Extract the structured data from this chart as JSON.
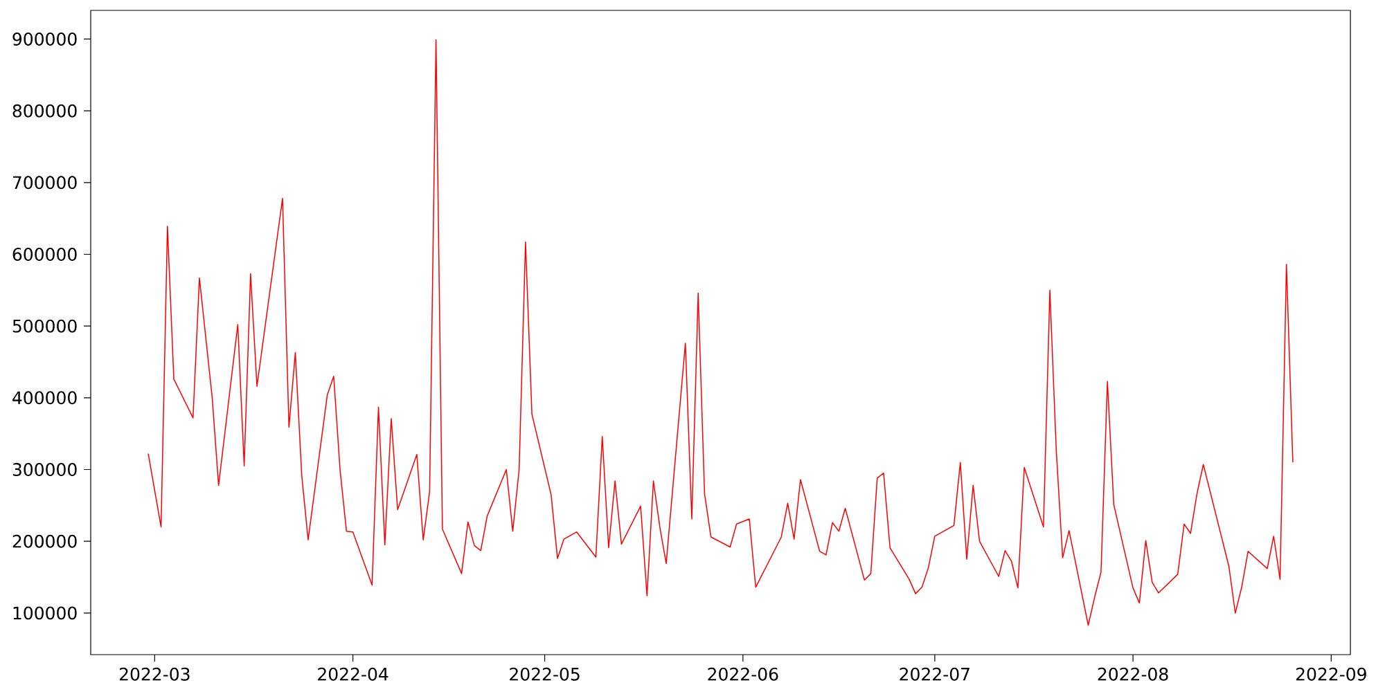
{
  "chart_data": {
    "type": "line",
    "color": "#ff0000",
    "x": [
      "2022-02-28",
      "2022-03-02",
      "2022-03-03",
      "2022-03-04",
      "2022-03-07",
      "2022-03-08",
      "2022-03-10",
      "2022-03-11",
      "2022-03-14",
      "2022-03-15",
      "2022-03-16",
      "2022-03-17",
      "2022-03-21",
      "2022-03-22",
      "2022-03-23",
      "2022-03-24",
      "2022-03-25",
      "2022-03-28",
      "2022-03-29",
      "2022-03-30",
      "2022-03-31",
      "2022-04-01",
      "2022-04-04",
      "2022-04-05",
      "2022-04-06",
      "2022-04-07",
      "2022-04-08",
      "2022-04-11",
      "2022-04-12",
      "2022-04-13",
      "2022-04-14",
      "2022-04-15",
      "2022-04-18",
      "2022-04-19",
      "2022-04-20",
      "2022-04-21",
      "2022-04-22",
      "2022-04-25",
      "2022-04-26",
      "2022-04-27",
      "2022-04-28",
      "2022-04-29",
      "2022-05-02",
      "2022-05-03",
      "2022-05-04",
      "2022-05-06",
      "2022-05-09",
      "2022-05-10",
      "2022-05-11",
      "2022-05-12",
      "2022-05-13",
      "2022-05-16",
      "2022-05-17",
      "2022-05-18",
      "2022-05-19",
      "2022-05-20",
      "2022-05-23",
      "2022-05-24",
      "2022-05-25",
      "2022-05-26",
      "2022-05-27",
      "2022-05-30",
      "2022-05-31",
      "2022-06-02",
      "2022-06-03",
      "2022-06-07",
      "2022-06-08",
      "2022-06-09",
      "2022-06-10",
      "2022-06-13",
      "2022-06-14",
      "2022-06-15",
      "2022-06-16",
      "2022-06-17",
      "2022-06-20",
      "2022-06-21",
      "2022-06-22",
      "2022-06-23",
      "2022-06-24",
      "2022-06-27",
      "2022-06-28",
      "2022-06-29",
      "2022-06-30",
      "2022-07-01",
      "2022-07-04",
      "2022-07-05",
      "2022-07-06",
      "2022-07-07",
      "2022-07-08",
      "2022-07-11",
      "2022-07-12",
      "2022-07-13",
      "2022-07-14",
      "2022-07-15",
      "2022-07-18",
      "2022-07-19",
      "2022-07-20",
      "2022-07-21",
      "2022-07-22",
      "2022-07-25",
      "2022-07-26",
      "2022-07-27",
      "2022-07-28",
      "2022-07-29",
      "2022-08-01",
      "2022-08-02",
      "2022-08-03",
      "2022-08-04",
      "2022-08-05",
      "2022-08-08",
      "2022-08-09",
      "2022-08-10",
      "2022-08-11",
      "2022-08-12",
      "2022-08-16",
      "2022-08-17",
      "2022-08-18",
      "2022-08-19",
      "2022-08-22",
      "2022-08-23",
      "2022-08-24",
      "2022-08-25",
      "2022-08-26"
    ],
    "values": [
      322000,
      220000,
      639000,
      426000,
      372000,
      567000,
      400000,
      278000,
      502000,
      305000,
      573000,
      416000,
      678000,
      359000,
      463000,
      292000,
      202000,
      404000,
      430000,
      299000,
      214000,
      213000,
      139000,
      387000,
      195000,
      371000,
      244000,
      321000,
      202000,
      269000,
      899000,
      217000,
      155000,
      227000,
      194000,
      187000,
      235000,
      300000,
      214000,
      300000,
      617000,
      377000,
      265000,
      176000,
      203000,
      213000,
      178000,
      346000,
      191000,
      284000,
      196000,
      249000,
      124000,
      284000,
      220000,
      169000,
      476000,
      231000,
      546000,
      266000,
      206000,
      192000,
      224000,
      231000,
      136000,
      206000,
      253000,
      203000,
      286000,
      186000,
      181000,
      226000,
      214000,
      246000,
      146000,
      155000,
      288000,
      295000,
      191000,
      147000,
      127000,
      136000,
      163000,
      207000,
      222000,
      310000,
      175000,
      278000,
      200000,
      151000,
      187000,
      172000,
      135000,
      303000,
      220000,
      550000,
      327000,
      177000,
      215000,
      83000,
      122000,
      157000,
      423000,
      251000,
      135000,
      114000,
      201000,
      143000,
      128000,
      154000,
      224000,
      211000,
      266000,
      307000,
      165000,
      100000,
      136000,
      186000,
      162000,
      207000,
      147000,
      586000,
      310000
    ],
    "xlim": [
      "2022-02-19",
      "2022-09-04"
    ],
    "xticks": [
      {
        "value": "2022-03-01",
        "label": "2022-03"
      },
      {
        "value": "2022-04-01",
        "label": "2022-04"
      },
      {
        "value": "2022-05-01",
        "label": "2022-05"
      },
      {
        "value": "2022-06-01",
        "label": "2022-06"
      },
      {
        "value": "2022-07-01",
        "label": "2022-07"
      },
      {
        "value": "2022-08-01",
        "label": "2022-08"
      },
      {
        "value": "2022-09-01",
        "label": "2022-09"
      }
    ],
    "ylim": [
      42000,
      940000
    ],
    "yticks": [
      100000,
      200000,
      300000,
      400000,
      500000,
      600000,
      700000,
      800000,
      900000
    ]
  }
}
